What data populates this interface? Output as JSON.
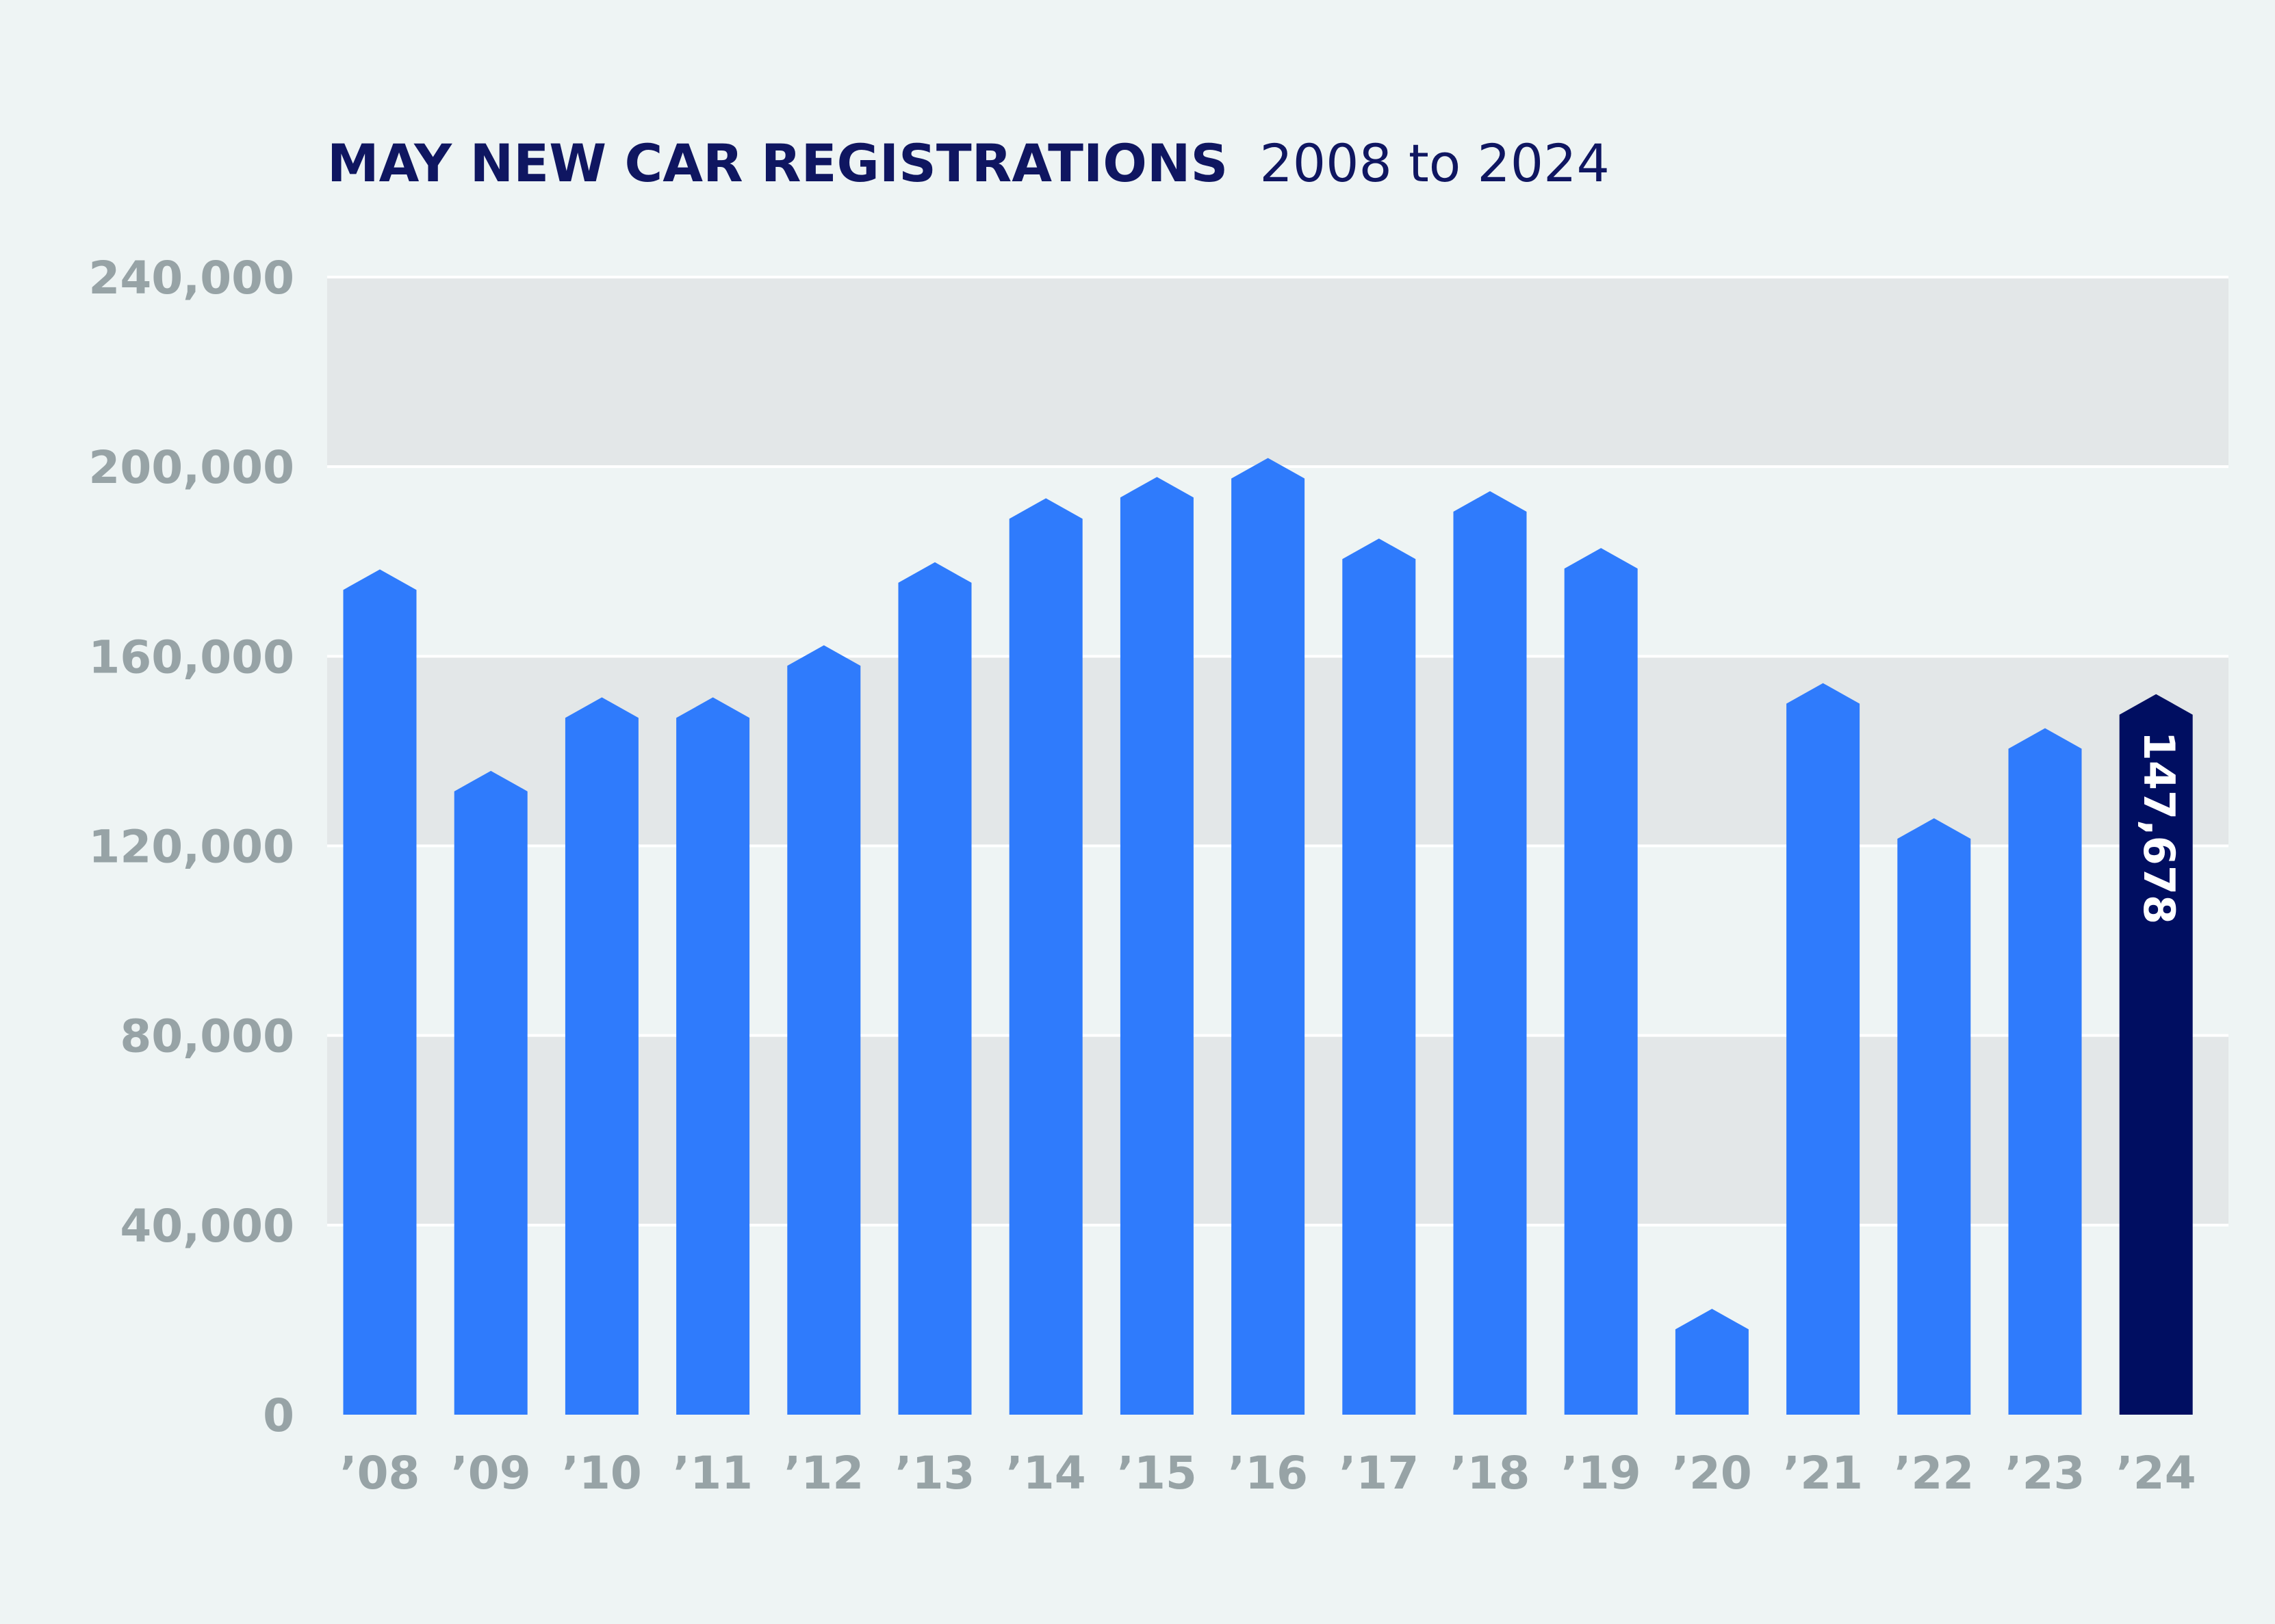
{
  "chart_data": {
    "type": "bar",
    "title": "MAY NEW CAR REGISTRATIONS",
    "subtitle": "2008 to 2024",
    "categories": [
      "’08",
      "’09",
      "’10",
      "’11",
      "’12",
      "’13",
      "’14",
      "’15",
      "’16",
      "’17",
      "’18",
      "’19",
      "’20",
      "’21",
      "’22",
      "’23",
      "’24"
    ],
    "values": [
      174000,
      131500,
      147000,
      147000,
      158000,
      175500,
      189000,
      193500,
      197500,
      180500,
      190500,
      178500,
      18000,
      150000,
      121500,
      140500,
      147678
    ],
    "ylim": [
      0,
      240000
    ],
    "yticks": [
      0,
      40000,
      80000,
      120000,
      160000,
      200000,
      240000
    ],
    "ytick_labels": [
      "0",
      "40,000",
      "80,000",
      "120,000",
      "160,000",
      "200,000",
      "240,000"
    ],
    "highlight": {
      "category": "’24",
      "label": "147,678"
    },
    "grid": true,
    "colors": {
      "bar": "#2f7bfc",
      "highlight": "#000e61",
      "band_dark": "#e3e7e8",
      "band_light": "#eef4f4",
      "title": "#0f1661",
      "tick": "#97a3a6"
    }
  }
}
